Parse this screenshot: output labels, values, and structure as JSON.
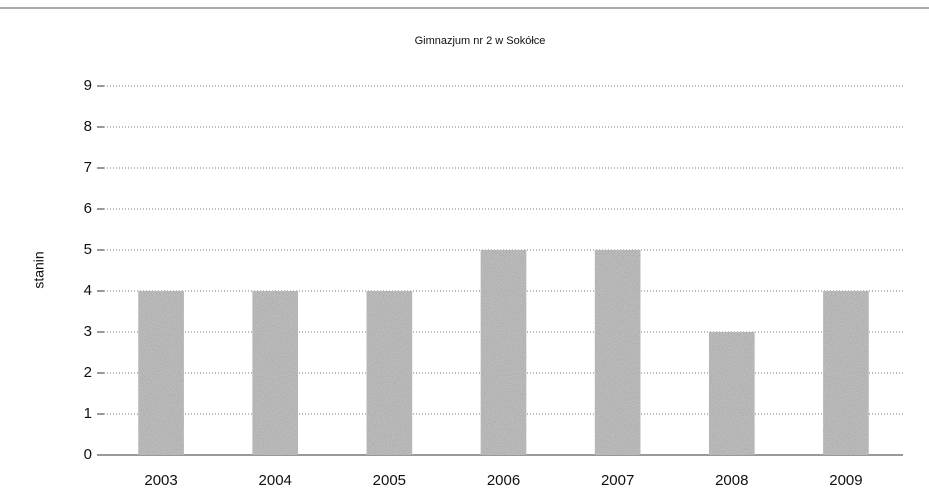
{
  "chart_data": {
    "type": "bar",
    "title": "Gimnazjum nr 2 w Sokółce",
    "y_label": "stanin",
    "categories": [
      "2003",
      "2004",
      "2005",
      "2006",
      "2007",
      "2008",
      "2009"
    ],
    "values": [
      4,
      4,
      4,
      5,
      5,
      3,
      4
    ],
    "color": "#c4c4c4",
    "ylim": [
      0,
      9
    ],
    "yticks": [
      0,
      1,
      2,
      3,
      4,
      5,
      6,
      7,
      8,
      9
    ],
    "grid": true
  }
}
